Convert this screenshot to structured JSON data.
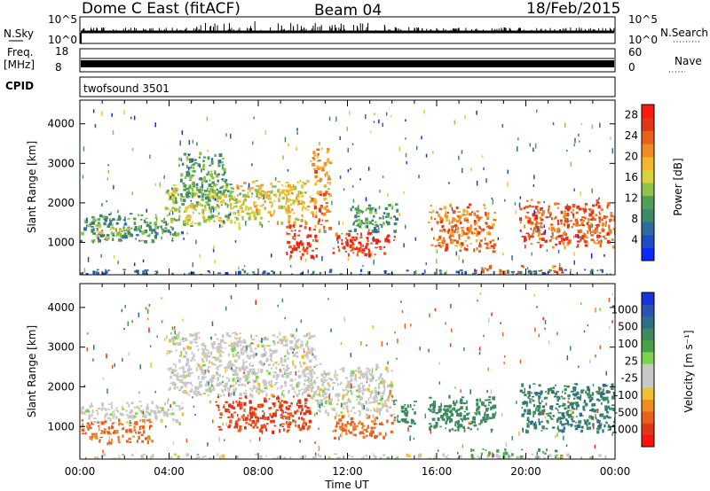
{
  "header": {
    "title": "Dome C East (fitACF)",
    "beam": "Beam 04",
    "date": "18/Feb/2015"
  },
  "strips": {
    "nsky": {
      "label": "N.Sky",
      "ticks_left": [
        "10^5",
        "10^0"
      ]
    },
    "nsearch": {
      "label": "N.Search",
      "ticks_right": [
        "10^5",
        "10^0"
      ]
    },
    "freq": {
      "label_line1": "Freq.",
      "label_line2": "[MHz]",
      "ticks_left": [
        "18",
        "8"
      ]
    },
    "nave": {
      "label": "Nave",
      "ticks_right": [
        "60",
        "0"
      ]
    },
    "cpid": {
      "label": "CPID",
      "value": "twofsound 3501"
    }
  },
  "colors": {
    "power_scale": [
      "#0a28ff",
      "#1e4cc4",
      "#2f6aa0",
      "#3d8a6a",
      "#4fa054",
      "#8fc34a",
      "#d9d23a",
      "#f3b62e",
      "#f08a24",
      "#e8601c",
      "#e2361a",
      "#ff1a10"
    ],
    "velocity_scale": [
      "#1633e0",
      "#2a52b4",
      "#2d6f86",
      "#3c8a5e",
      "#48a24a",
      "#7ed34c",
      "#c8c8c8",
      "#c8c8c8",
      "#f0c034",
      "#f08a24",
      "#e9601c",
      "#e23418",
      "#ff1010"
    ],
    "ground_scatter": "#b3b3b3"
  },
  "chart_data": [
    {
      "type": "heatmap",
      "panel": "power",
      "ylabel": "Slant Range [km]",
      "xlim": [
        0,
        24
      ],
      "ylim": [
        180,
        4600
      ],
      "yticks": [
        "1000",
        "2000",
        "3000",
        "4000"
      ],
      "xticks": [
        "00:00",
        "04:00",
        "08:00",
        "12:00",
        "16:00",
        "20:00",
        "00:00"
      ],
      "colorbar": {
        "label": "Power [dB]",
        "ticks": [
          "4",
          "8",
          "12",
          "16",
          "20",
          "24",
          "28"
        ],
        "range": [
          0,
          30
        ]
      },
      "regions": [
        {
          "t": [
            0.0,
            4.6
          ],
          "r": [
            1050,
            1750
          ],
          "v": 10
        },
        {
          "t": [
            0.6,
            2.2
          ],
          "r": [
            1150,
            1500
          ],
          "v": 16
        },
        {
          "t": [
            3.8,
            7.2
          ],
          "r": [
            1400,
            2500
          ],
          "v": 15
        },
        {
          "t": [
            4.4,
            6.6
          ],
          "r": [
            2100,
            3300
          ],
          "v": 11
        },
        {
          "t": [
            7.0,
            10.3
          ],
          "r": [
            1500,
            2600
          ],
          "v": 18
        },
        {
          "t": [
            9.2,
            10.6
          ],
          "r": [
            650,
            1500
          ],
          "v": 27
        },
        {
          "t": [
            10.3,
            11.2
          ],
          "r": [
            1300,
            3400
          ],
          "v": 22
        },
        {
          "t": [
            11.3,
            14.1
          ],
          "r": [
            700,
            1300
          ],
          "v": 26
        },
        {
          "t": [
            12.0,
            14.2
          ],
          "r": [
            1300,
            2000
          ],
          "v": 10
        },
        {
          "t": [
            15.6,
            18.6
          ],
          "r": [
            800,
            2000
          ],
          "v": 22
        },
        {
          "t": [
            17.5,
            21.6
          ],
          "r": [
            250,
            450
          ],
          "v": 23
        },
        {
          "t": [
            19.7,
            24.0
          ],
          "r": [
            900,
            2100
          ],
          "v": 24
        },
        {
          "t": [
            0.0,
            24.0
          ],
          "r": [
            190,
            330
          ],
          "v": 6
        }
      ]
    },
    {
      "type": "heatmap",
      "panel": "velocity",
      "ylabel": "Slant Range [km]",
      "xlabel": "Time UT",
      "xlim": [
        0,
        24
      ],
      "ylim": [
        180,
        4600
      ],
      "yticks": [
        "1000",
        "2000",
        "3000",
        "4000"
      ],
      "xticks": [
        "00:00",
        "04:00",
        "08:00",
        "12:00",
        "16:00",
        "20:00",
        "00:00"
      ],
      "colorbar": {
        "label": "Velocity [m s⁻¹]",
        "ticks": [
          "1000",
          "500",
          "100",
          "25",
          "-25",
          "-100",
          "-500",
          "-1000"
        ]
      },
      "regions": [
        {
          "t": [
            0.0,
            4.6
          ],
          "r": [
            1100,
            1650
          ],
          "v": 0
        },
        {
          "t": [
            0.0,
            3.2
          ],
          "r": [
            600,
            1200
          ],
          "v": -120
        },
        {
          "t": [
            3.8,
            10.6
          ],
          "r": [
            1800,
            3400
          ],
          "v": 0
        },
        {
          "t": [
            6.0,
            10.3
          ],
          "r": [
            900,
            1800
          ],
          "v": -350
        },
        {
          "t": [
            10.3,
            14.0
          ],
          "r": [
            1300,
            2600
          ],
          "v": 0
        },
        {
          "t": [
            11.3,
            14.1
          ],
          "r": [
            700,
            1300
          ],
          "v": -120
        },
        {
          "t": [
            14.0,
            15.0
          ],
          "r": [
            950,
            1700
          ],
          "v": 220
        },
        {
          "t": [
            15.6,
            18.6
          ],
          "r": [
            900,
            1800
          ],
          "v": 200
        },
        {
          "t": [
            17.5,
            21.6
          ],
          "r": [
            250,
            450
          ],
          "v": 90
        },
        {
          "t": [
            19.7,
            24.0
          ],
          "r": [
            900,
            2100
          ],
          "v": 280
        },
        {
          "t": [
            0.0,
            24.0
          ],
          "r": [
            190,
            330
          ],
          "v": 0
        }
      ]
    }
  ]
}
